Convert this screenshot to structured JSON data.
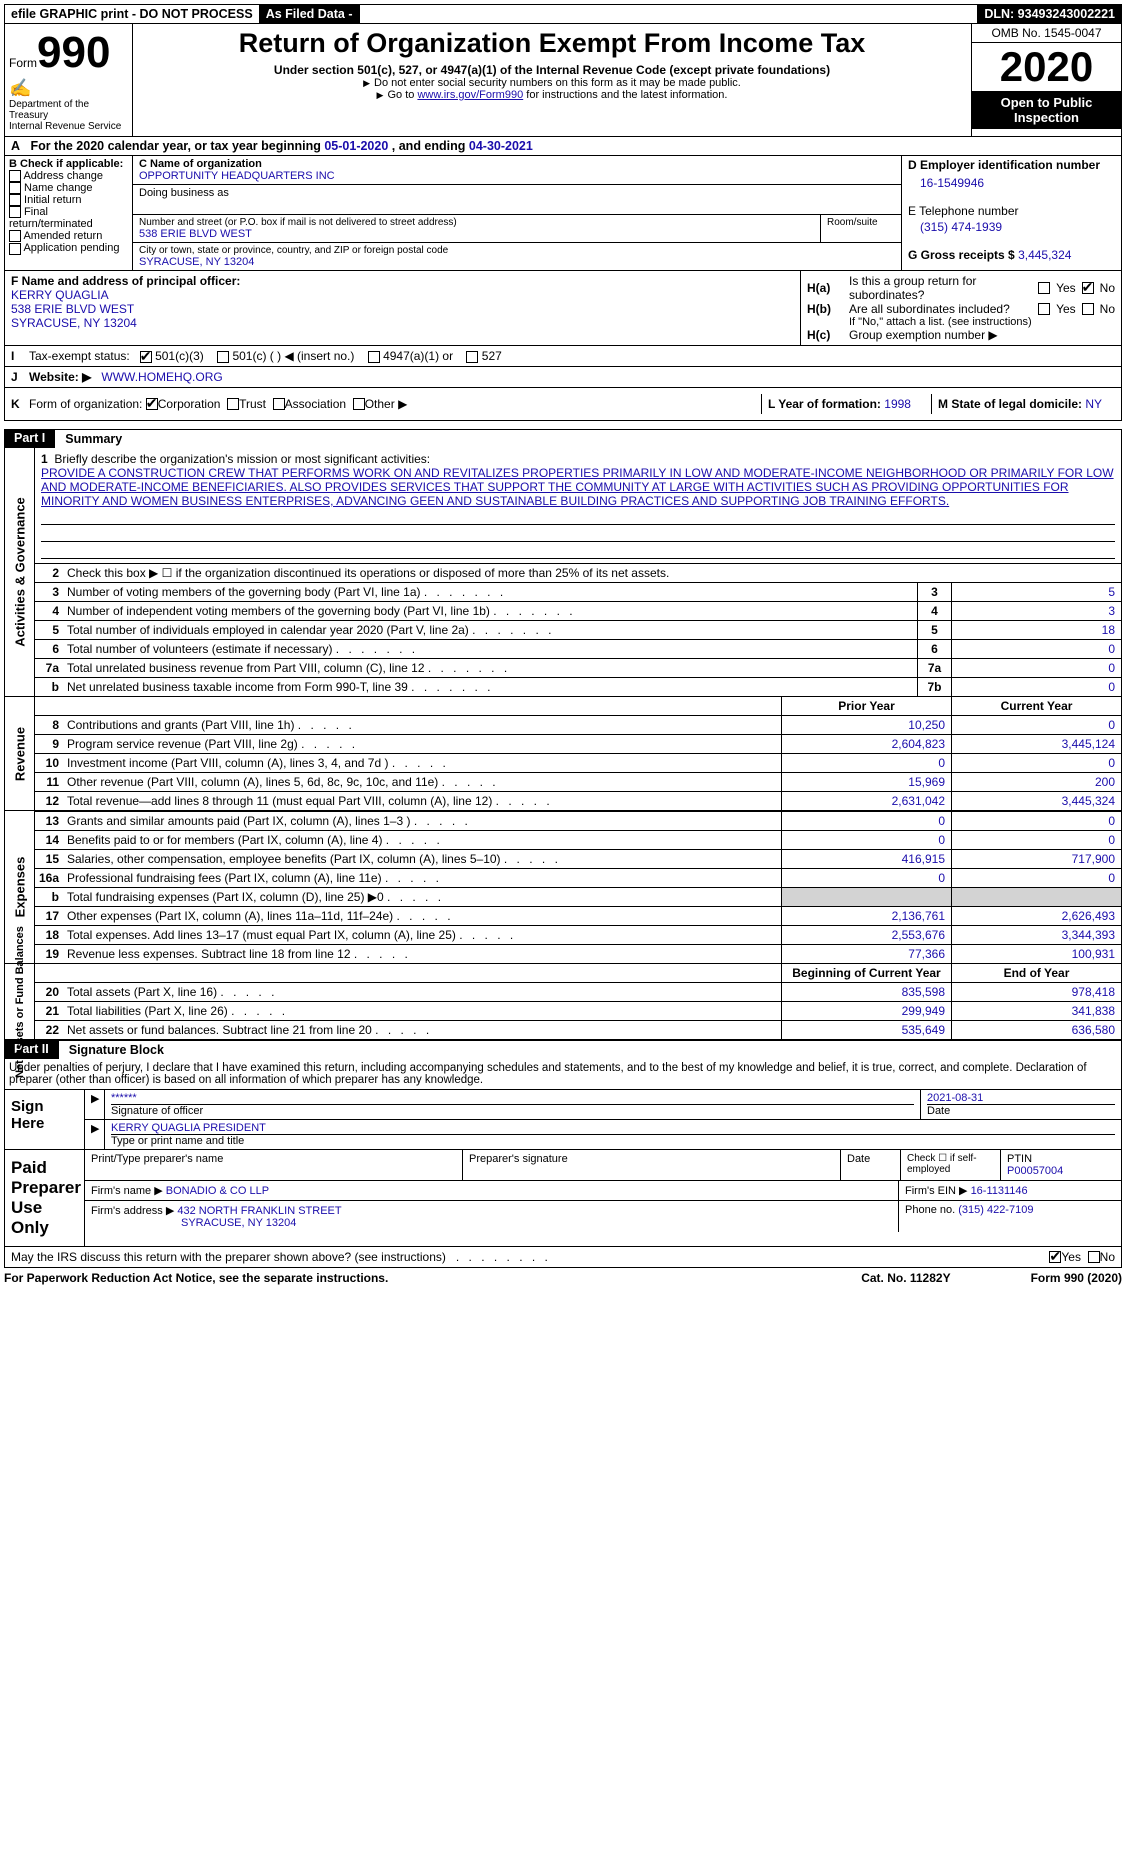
{
  "topbar": {
    "efile": "efile GRAPHIC print - DO NOT PROCESS",
    "asfiled": "As Filed Data -",
    "dln": "DLN: 93493243002221"
  },
  "header": {
    "form_prefix": "Form",
    "form_no": "990",
    "dept1": "Department of the Treasury",
    "dept2": "Internal Revenue Service",
    "title": "Return of Organization Exempt From Income Tax",
    "subtitle": "Under section 501(c), 527, or 4947(a)(1) of the Internal Revenue Code (except private foundations)",
    "note1": "Do not enter social security numbers on this form as it may be made public.",
    "note2_pre": "Go to",
    "note2_link": "www.irs.gov/Form990",
    "note2_post": "for instructions and the latest information.",
    "omb": "OMB No. 1545-0047",
    "year": "2020",
    "open": "Open to Public Inspection"
  },
  "secA": {
    "pre": "A",
    "txt1": "For the 2020 calendar year, or tax year beginning",
    "d1": "05-01-2020",
    "txt2": ", and ending",
    "d2": "04-30-2021"
  },
  "colB": {
    "hdr": "B Check if applicable:",
    "items": [
      "Address change",
      "Name change",
      "Initial return",
      "Final return/terminated",
      "Amended return",
      "Application pending"
    ]
  },
  "colC": {
    "name_lbl": "C Name of organization",
    "name": "OPPORTUNITY HEADQUARTERS INC",
    "dba_lbl": "Doing business as",
    "addr_lbl": "Number and street (or P.O. box if mail is not delivered to street address)",
    "addr": "538 ERIE BLVD WEST",
    "room_lbl": "Room/suite",
    "city_lbl": "City or town, state or province, country, and ZIP or foreign postal code",
    "city": "SYRACUSE, NY  13204"
  },
  "colD": {
    "ein_lbl": "D Employer identification number",
    "ein": "16-1549946",
    "tel_lbl": "E Telephone number",
    "tel": "(315) 474-1939",
    "gross_lbl": "G Gross receipts $",
    "gross": "3,445,324"
  },
  "colF": {
    "lbl": "F  Name and address of principal officer:",
    "name": "KERRY QUAGLIA",
    "addr": "538 ERIE BLVD WEST",
    "city": "SYRACUSE, NY  13204"
  },
  "colH": {
    "a": "Is this a group return for subordinates?",
    "b": "Are all subordinates included?",
    "bnote": "If \"No,\" attach a list. (see instructions)",
    "c": "Group exemption number ▶"
  },
  "rowI": {
    "lbl": "Tax-exempt status:",
    "o1": "501(c)(3)",
    "o2": "501(c) (   ) ◀ (insert no.)",
    "o3": "4947(a)(1) or",
    "o4": "527"
  },
  "rowJ": {
    "lbl": "Website: ▶",
    "val": "WWW.HOMEHQ.ORG"
  },
  "rowK": {
    "lbl": "Form of organization:",
    "o1": "Corporation",
    "o2": "Trust",
    "o3": "Association",
    "o4": "Other ▶",
    "l_lbl": "L Year of formation:",
    "l_val": "1998",
    "m_lbl": "M State of legal domicile:",
    "m_val": "NY"
  },
  "part1": {
    "num": "Part I",
    "title": "Summary"
  },
  "mission": {
    "lbl": "1",
    "intro": "Briefly describe the organization's mission or most significant activities:",
    "text": "PROVIDE A CONSTRUCTION CREW THAT PERFORMS WORK ON AND REVITALIZES PROPERTIES PRIMARILY IN LOW AND MODERATE-INCOME NEIGHBORHOOD OR PRIMARILY FOR LOW AND MODERATE-INCOME BENEFICIARIES. ALSO PROVIDES SERVICES THAT SUPPORT THE COMMUNITY AT LARGE WITH ACTIVITIES SUCH AS PROVIDING OPPORTUNITIES FOR MINORITY AND WOMEN BUSINESS ENTERPRISES, ADVANCING GEEN AND SUSTAINABLE BUILDING PRACTICES AND SUPPORTING JOB TRAINING EFFORTS."
  },
  "gov": {
    "l2": "Check this box ▶ ☐ if the organization discontinued its operations or disposed of more than 25% of its net assets.",
    "rows": [
      {
        "n": "3",
        "t": "Number of voting members of the governing body (Part VI, line 1a)",
        "cn": "3",
        "v": "5"
      },
      {
        "n": "4",
        "t": "Number of independent voting members of the governing body (Part VI, line 1b)",
        "cn": "4",
        "v": "3"
      },
      {
        "n": "5",
        "t": "Total number of individuals employed in calendar year 2020 (Part V, line 2a)",
        "cn": "5",
        "v": "18"
      },
      {
        "n": "6",
        "t": "Total number of volunteers (estimate if necessary)",
        "cn": "6",
        "v": "0"
      },
      {
        "n": "7a",
        "t": "Total unrelated business revenue from Part VIII, column (C), line 12",
        "cn": "7a",
        "v": "0"
      },
      {
        "n": "b",
        "t": "Net unrelated business taxable income from Form 990-T, line 39",
        "cn": "7b",
        "v": "0"
      }
    ],
    "tab": "Activities & Governance"
  },
  "rev": {
    "hdr1": "Prior Year",
    "hdr2": "Current Year",
    "rows": [
      {
        "n": "8",
        "t": "Contributions and grants (Part VIII, line 1h)",
        "p": "10,250",
        "c": "0"
      },
      {
        "n": "9",
        "t": "Program service revenue (Part VIII, line 2g)",
        "p": "2,604,823",
        "c": "3,445,124"
      },
      {
        "n": "10",
        "t": "Investment income (Part VIII, column (A), lines 3, 4, and 7d )",
        "p": "0",
        "c": "0"
      },
      {
        "n": "11",
        "t": "Other revenue (Part VIII, column (A), lines 5, 6d, 8c, 9c, 10c, and 11e)",
        "p": "15,969",
        "c": "200"
      },
      {
        "n": "12",
        "t": "Total revenue—add lines 8 through 11 (must equal Part VIII, column (A), line 12)",
        "p": "2,631,042",
        "c": "3,445,324"
      }
    ],
    "tab": "Revenue"
  },
  "exp": {
    "rows": [
      {
        "n": "13",
        "t": "Grants and similar amounts paid (Part IX, column (A), lines 1–3 )",
        "p": "0",
        "c": "0"
      },
      {
        "n": "14",
        "t": "Benefits paid to or for members (Part IX, column (A), line 4)",
        "p": "0",
        "c": "0"
      },
      {
        "n": "15",
        "t": "Salaries, other compensation, employee benefits (Part IX, column (A), lines 5–10)",
        "p": "416,915",
        "c": "717,900"
      },
      {
        "n": "16a",
        "t": "Professional fundraising fees (Part IX, column (A), line 11e)",
        "p": "0",
        "c": "0"
      },
      {
        "n": "b",
        "t": "Total fundraising expenses (Part IX, column (D), line 25) ▶0",
        "p": "",
        "c": "",
        "gray": true
      },
      {
        "n": "17",
        "t": "Other expenses (Part IX, column (A), lines 11a–11d, 11f–24e)",
        "p": "2,136,761",
        "c": "2,626,493"
      },
      {
        "n": "18",
        "t": "Total expenses. Add lines 13–17 (must equal Part IX, column (A), line 25)",
        "p": "2,553,676",
        "c": "3,344,393"
      },
      {
        "n": "19",
        "t": "Revenue less expenses. Subtract line 18 from line 12",
        "p": "77,366",
        "c": "100,931"
      }
    ],
    "tab": "Expenses"
  },
  "net": {
    "hdr1": "Beginning of Current Year",
    "hdr2": "End of Year",
    "rows": [
      {
        "n": "20",
        "t": "Total assets (Part X, line 16)",
        "p": "835,598",
        "c": "978,418"
      },
      {
        "n": "21",
        "t": "Total liabilities (Part X, line 26)",
        "p": "299,949",
        "c": "341,838"
      },
      {
        "n": "22",
        "t": "Net assets or fund balances. Subtract line 21 from line 20",
        "p": "535,649",
        "c": "636,580"
      }
    ],
    "tab": "Net Assets or Fund Balances"
  },
  "part2": {
    "num": "Part II",
    "title": "Signature Block"
  },
  "sig": {
    "note": "Under penalties of perjury, I declare that I have examined this return, including accompanying schedules and statements, and to the best of my knowledge and belief, it is true, correct, and complete. Declaration of preparer (other than officer) is based on all information of which preparer has any knowledge.",
    "label": "Sign Here",
    "stars": "******",
    "sig_lbl": "Signature of officer",
    "date": "2021-08-31",
    "date_lbl": "Date",
    "name": "KERRY QUAGLIA  PRESIDENT",
    "name_lbl": "Type or print name and title"
  },
  "prep": {
    "label": "Paid Preparer Use Only",
    "h1": "Print/Type preparer's name",
    "h2": "Preparer's signature",
    "h3": "Date",
    "h4": "Check ☐ if self-employed",
    "h5_lbl": "PTIN",
    "h5": "P00057004",
    "firm_lbl": "Firm's name   ▶",
    "firm": "BONADIO & CO LLP",
    "ein_lbl": "Firm's EIN ▶",
    "ein": "16-1131146",
    "addr_lbl": "Firm's address ▶",
    "addr1": "432 NORTH FRANKLIN STREET",
    "addr2": "SYRACUSE, NY  13204",
    "ph_lbl": "Phone no.",
    "ph": "(315) 422-7109"
  },
  "footer": {
    "q": "May the IRS discuss this return with the preparer shown above? (see instructions)",
    "yes": "Yes",
    "no": "No",
    "paperwork": "For Paperwork Reduction Act Notice, see the separate instructions.",
    "cat": "Cat. No. 11282Y",
    "form": "Form 990 (2020)"
  }
}
